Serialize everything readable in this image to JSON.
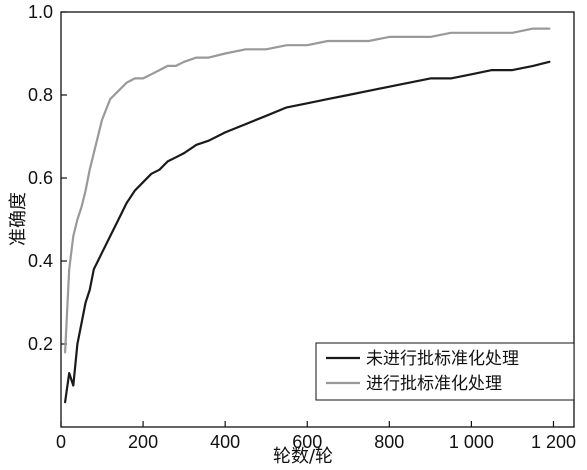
{
  "chart_data": {
    "type": "line",
    "title": "",
    "xlabel": "轮数/轮",
    "ylabel": "准确度",
    "xlim": [
      0,
      1250
    ],
    "ylim": [
      0,
      1.0
    ],
    "xticks": [
      0,
      200,
      400,
      600,
      800,
      1000,
      1200
    ],
    "xtick_labels": [
      "0",
      "200",
      "400",
      "600",
      "800",
      "1 000",
      "1 200"
    ],
    "yticks": [
      0.2,
      0.4,
      0.6,
      0.8,
      1.0
    ],
    "ytick_labels": [
      "0.2",
      "0.4",
      "0.6",
      "0.8",
      "1.0"
    ],
    "legend_position": "bottom-right",
    "grid": false,
    "series": [
      {
        "name": "未进行批标准化处理",
        "color": "#1a1a1a",
        "x": [
          10,
          20,
          30,
          40,
          50,
          60,
          70,
          80,
          90,
          100,
          120,
          140,
          160,
          180,
          200,
          220,
          240,
          260,
          280,
          300,
          330,
          360,
          400,
          450,
          500,
          550,
          600,
          650,
          700,
          750,
          800,
          850,
          900,
          950,
          1000,
          1050,
          1100,
          1150,
          1190
        ],
        "y": [
          0.06,
          0.13,
          0.1,
          0.2,
          0.25,
          0.3,
          0.33,
          0.38,
          0.4,
          0.42,
          0.46,
          0.5,
          0.54,
          0.57,
          0.59,
          0.61,
          0.62,
          0.64,
          0.65,
          0.66,
          0.68,
          0.69,
          0.71,
          0.73,
          0.75,
          0.77,
          0.78,
          0.79,
          0.8,
          0.81,
          0.82,
          0.83,
          0.84,
          0.84,
          0.85,
          0.86,
          0.86,
          0.87,
          0.88
        ]
      },
      {
        "name": "进行批标准化处理",
        "color": "#999999",
        "x": [
          10,
          20,
          30,
          40,
          50,
          60,
          70,
          80,
          90,
          100,
          120,
          140,
          160,
          180,
          200,
          220,
          240,
          260,
          280,
          300,
          330,
          360,
          400,
          450,
          500,
          550,
          600,
          650,
          700,
          750,
          800,
          850,
          900,
          950,
          1000,
          1050,
          1100,
          1150,
          1190
        ],
        "y": [
          0.18,
          0.38,
          0.46,
          0.5,
          0.53,
          0.57,
          0.62,
          0.66,
          0.7,
          0.74,
          0.79,
          0.81,
          0.83,
          0.84,
          0.84,
          0.85,
          0.86,
          0.87,
          0.87,
          0.88,
          0.89,
          0.89,
          0.9,
          0.91,
          0.91,
          0.92,
          0.92,
          0.93,
          0.93,
          0.93,
          0.94,
          0.94,
          0.94,
          0.95,
          0.95,
          0.95,
          0.95,
          0.96,
          0.96
        ]
      }
    ]
  }
}
